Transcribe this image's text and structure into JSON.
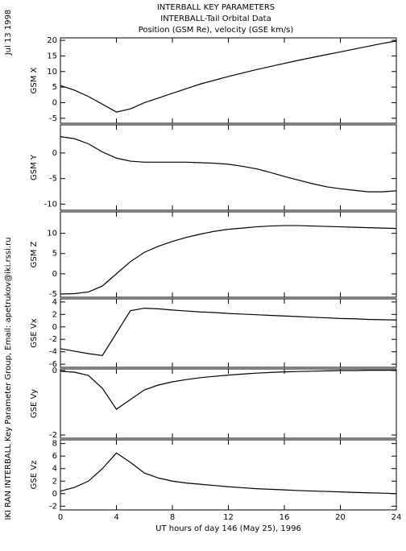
{
  "date": "Jul 13 1998",
  "credit": "IKI RAN INTERBALL Key Parameter Group, Email: apetrukov@iki.rssi.ru",
  "chart_data": [
    {
      "type": "line",
      "title": [
        "INTERBALL KEY PARAMETERS",
        "INTERBALL-Tail Orbital Data",
        "Position (GSM Re), velocity (GSE km/s)"
      ],
      "ylabel": "GSM X",
      "xlim": [
        0,
        24
      ],
      "x": [
        0,
        1,
        2,
        3,
        4,
        5,
        6,
        7,
        8,
        9,
        10,
        11,
        12,
        13,
        14,
        15,
        16,
        17,
        18,
        19,
        20,
        21,
        22,
        23,
        24
      ],
      "values": [
        5.5,
        4,
        2,
        -0.5,
        -3,
        -2,
        0,
        1.5,
        3,
        4.5,
        6,
        7.2,
        8.4,
        9.5,
        10.6,
        11.6,
        12.6,
        13.6,
        14.5,
        15.4,
        16.3,
        17.2,
        18.1,
        19,
        19.8
      ],
      "ylim": [
        -6.6,
        20.8
      ],
      "yticks": [
        -5,
        0,
        5,
        10,
        15,
        20
      ]
    },
    {
      "type": "line",
      "ylabel": "GSM Y",
      "xlim": [
        0,
        24
      ],
      "x": [
        0,
        1,
        2,
        3,
        4,
        5,
        6,
        7,
        8,
        9,
        10,
        11,
        12,
        13,
        14,
        15,
        16,
        17,
        18,
        19,
        20,
        21,
        22,
        23,
        24
      ],
      "values": [
        3.2,
        2.8,
        1.8,
        0.2,
        -1,
        -1.6,
        -1.8,
        -1.8,
        -1.8,
        -1.8,
        -1.9,
        -2,
        -2.2,
        -2.6,
        -3.1,
        -3.8,
        -4.6,
        -5.3,
        -6,
        -6.6,
        -7,
        -7.3,
        -7.6,
        -7.6,
        -7.4
      ],
      "ylim": [
        -11.2,
        5.5
      ],
      "yticks": [
        -10,
        -5,
        0
      ]
    },
    {
      "type": "line",
      "ylabel": "GSM Z",
      "xlim": [
        0,
        24
      ],
      "x": [
        0,
        1,
        2,
        3,
        4,
        5,
        6,
        7,
        8,
        9,
        10,
        11,
        12,
        13,
        14,
        15,
        16,
        17,
        18,
        19,
        20,
        21,
        22,
        23,
        24
      ],
      "values": [
        -5,
        -4.9,
        -4.5,
        -3,
        0,
        3,
        5.3,
        6.8,
        8,
        9,
        9.8,
        10.5,
        11,
        11.3,
        11.6,
        11.8,
        11.9,
        11.9,
        11.8,
        11.7,
        11.6,
        11.5,
        11.4,
        11.3,
        11.2
      ],
      "ylim": [
        -5.8,
        15.3
      ],
      "yticks": [
        -5,
        0,
        5,
        10
      ]
    },
    {
      "type": "line",
      "ylabel": "GSE Vx",
      "xlim": [
        0,
        24
      ],
      "x": [
        0,
        1,
        2,
        3,
        4,
        5,
        6,
        7,
        8,
        9,
        10,
        11,
        12,
        13,
        14,
        15,
        16,
        17,
        18,
        19,
        20,
        21,
        22,
        23,
        24
      ],
      "values": [
        -3.5,
        -3.9,
        -4.3,
        -4.6,
        -1,
        2.6,
        3,
        2.9,
        2.7,
        2.55,
        2.4,
        2.3,
        2.15,
        2.05,
        1.95,
        1.85,
        1.75,
        1.65,
        1.55,
        1.45,
        1.35,
        1.3,
        1.2,
        1.15,
        1.1
      ],
      "ylim": [
        -6.5,
        4.5
      ],
      "yticks": [
        -6,
        -4,
        -2,
        0,
        2,
        4
      ]
    },
    {
      "type": "line",
      "ylabel": "GSE Vy",
      "xlim": [
        0,
        24
      ],
      "x": [
        0,
        1,
        2,
        3,
        4,
        5,
        6,
        7,
        8,
        9,
        10,
        11,
        12,
        13,
        14,
        15,
        16,
        17,
        18,
        19,
        20,
        21,
        22,
        23,
        24
      ],
      "values": [
        -0.02,
        -0.05,
        -0.15,
        -0.55,
        -1.2,
        -0.9,
        -0.6,
        -0.45,
        -0.35,
        -0.28,
        -0.22,
        -0.18,
        -0.14,
        -0.11,
        -0.08,
        -0.06,
        -0.04,
        -0.03,
        -0.02,
        -0.01,
        0,
        0,
        0.01,
        0.01,
        0.01
      ],
      "ylim": [
        -2.1,
        0.05
      ],
      "yticks": [
        -2,
        0
      ]
    },
    {
      "type": "line",
      "ylabel": "GSE Vz",
      "xlabel": "UT hours of day 146 (May 25), 1996",
      "xlim": [
        0,
        24
      ],
      "x": [
        0,
        1,
        2,
        3,
        4,
        5,
        6,
        7,
        8,
        9,
        10,
        11,
        12,
        13,
        14,
        15,
        16,
        17,
        18,
        19,
        20,
        21,
        22,
        23,
        24
      ],
      "values": [
        0.4,
        1,
        2,
        4,
        6.5,
        5,
        3.3,
        2.5,
        2,
        1.7,
        1.5,
        1.3,
        1.1,
        0.95,
        0.8,
        0.7,
        0.6,
        0.5,
        0.42,
        0.35,
        0.28,
        0.2,
        0.14,
        0.08,
        0
      ],
      "ylim": [
        -2.6,
        8.6
      ],
      "yticks": [
        -2,
        0,
        2,
        4,
        6,
        8
      ],
      "xticks": [
        0,
        4,
        8,
        12,
        16,
        20,
        24
      ]
    }
  ]
}
